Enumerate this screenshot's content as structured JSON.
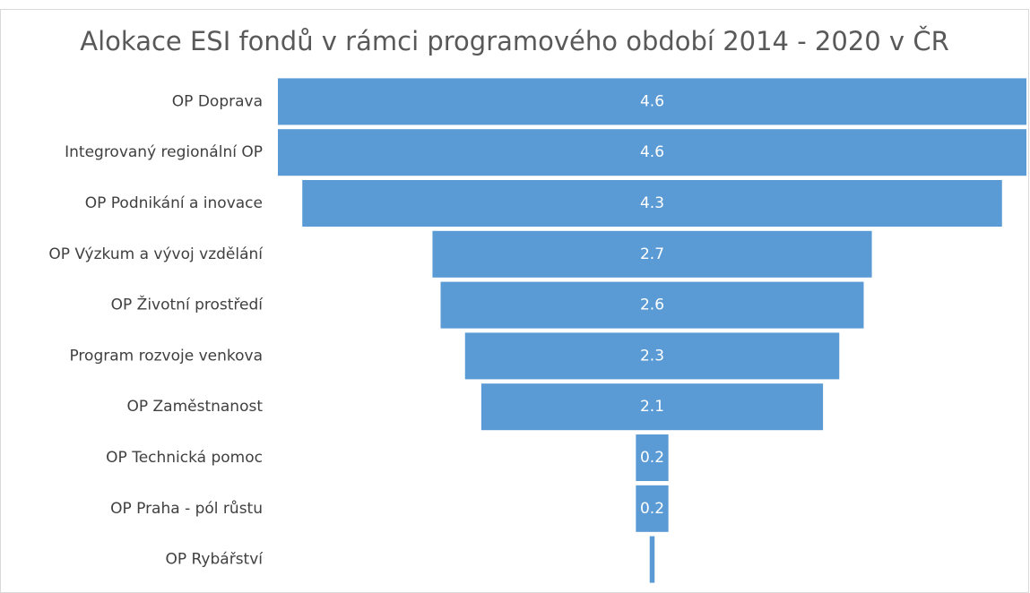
{
  "chart_data": {
    "type": "funnel",
    "title": "Alokace ESI fondů v rámci programového období 2014 - 2020 v ČR",
    "categories": [
      "OP Doprava",
      "Integrovaný regionální OP",
      "OP Podnikání a inovace",
      "OP Výzkum a vývoj vzdělání",
      "OP Životní prostředí",
      "Program rozvoje venkova",
      "OP Zaměstnanost",
      "OP Technická pomoc",
      "OP Praha - pól růstu",
      "OP Rybářství"
    ],
    "values": [
      4.6,
      4.6,
      4.3,
      2.7,
      2.6,
      2.3,
      2.1,
      0.2,
      0.2,
      0.03
    ],
    "value_labels": [
      "4.6",
      "4.6",
      "4.3",
      "2.7",
      "2.6",
      "2.3",
      "2.1",
      "0.2",
      "0.2",
      null
    ],
    "color": "#5b9bd5"
  }
}
